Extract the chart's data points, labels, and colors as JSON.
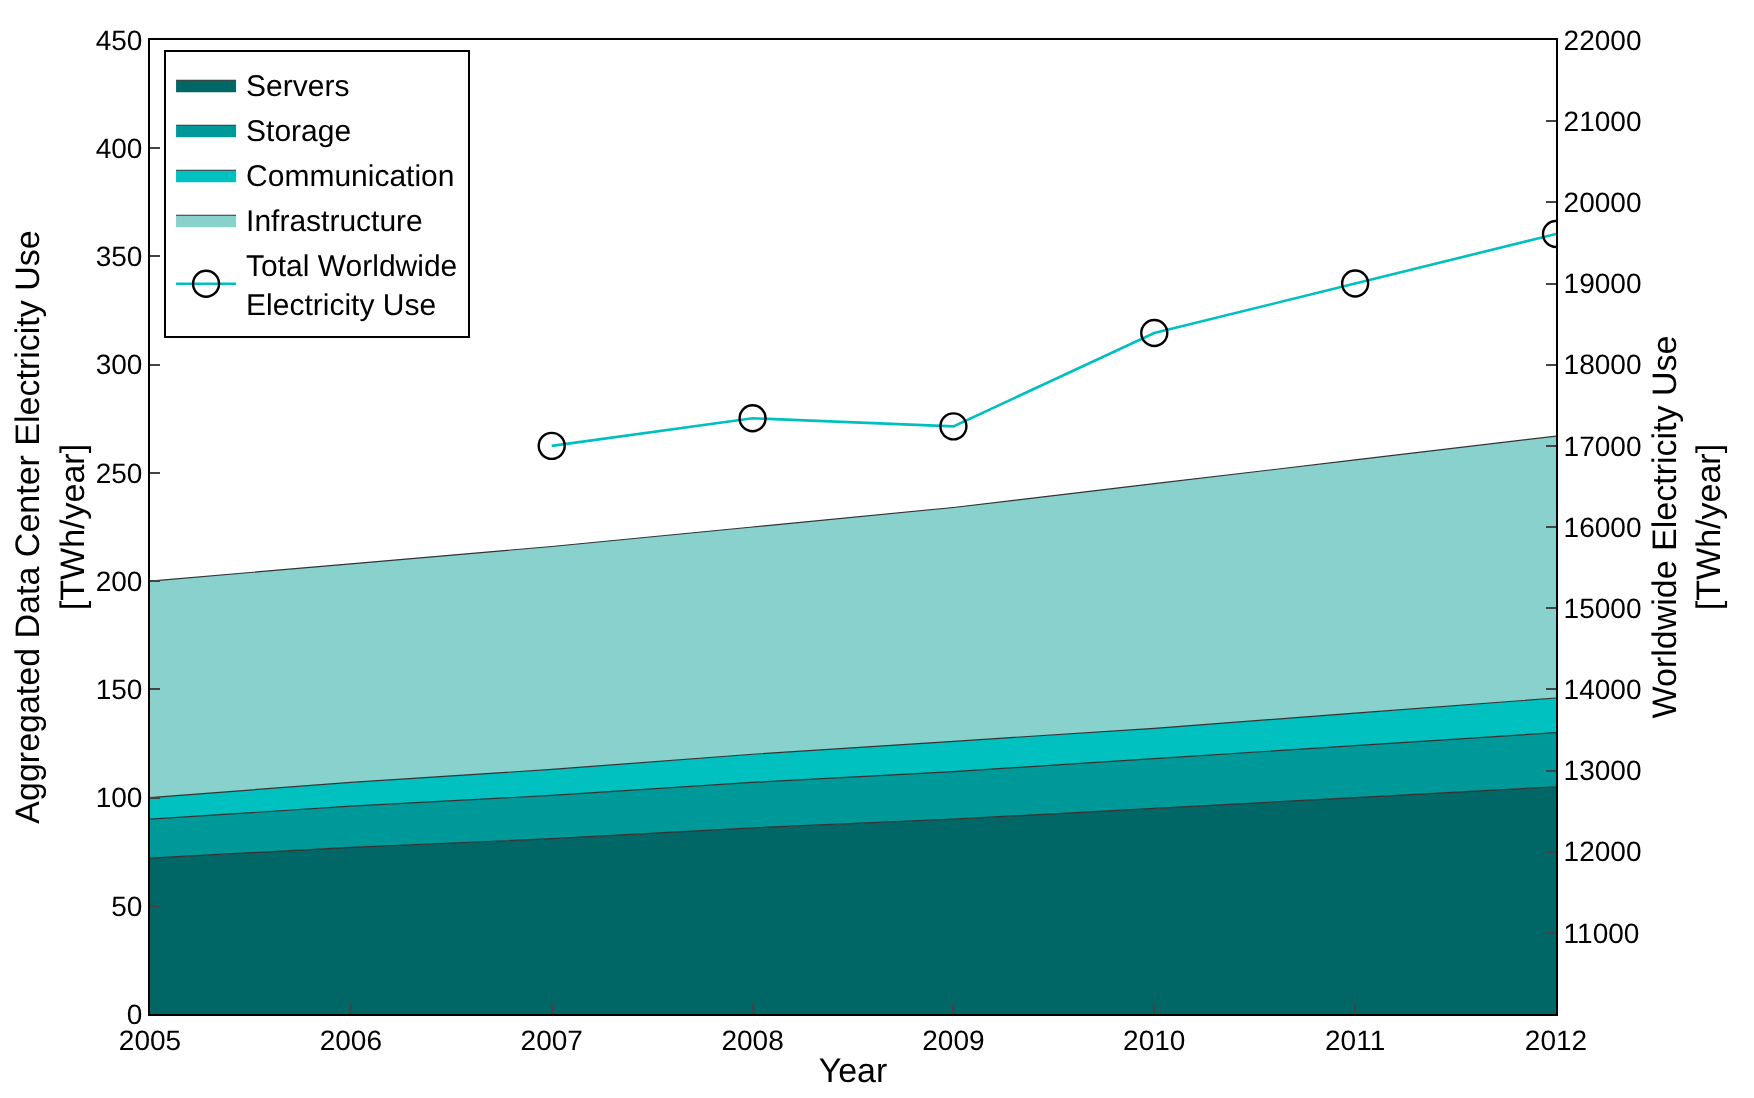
{
  "chart_data": {
    "type": "area",
    "stacked": true,
    "xlabel": "Year",
    "ylabel": "Aggregated Data Center Electricity Use\n[TWh/year]",
    "y2label": "Worldwide Electricity Use\n[TWh/year]",
    "x": [
      2005,
      2006,
      2007,
      2008,
      2009,
      2010,
      2011,
      2012
    ],
    "xlim": [
      2005,
      2012
    ],
    "xticks": [
      2005,
      2006,
      2007,
      2008,
      2009,
      2010,
      2011,
      2012
    ],
    "ylim": [
      0,
      450
    ],
    "yticks": [
      0,
      50,
      100,
      150,
      200,
      250,
      300,
      350,
      400,
      450
    ],
    "y2lim": [
      10000,
      22000
    ],
    "y2ticks": [
      11000,
      12000,
      13000,
      14000,
      15000,
      16000,
      17000,
      18000,
      19000,
      20000,
      21000,
      22000
    ],
    "grid": false,
    "legend": "top left",
    "series": [
      {
        "name": "Servers",
        "color": "#006666",
        "values": [
          72,
          77,
          81,
          86,
          90,
          95,
          100,
          105
        ]
      },
      {
        "name": "Storage",
        "color": "#009999",
        "values": [
          18,
          19,
          20,
          21,
          22,
          23,
          24,
          25
        ]
      },
      {
        "name": "Communication",
        "color": "#00c0c0",
        "values": [
          10,
          11,
          12,
          13,
          14,
          14,
          15,
          16
        ]
      },
      {
        "name": "Infrastructure",
        "color": "#88d1cd",
        "values": [
          100,
          101,
          103,
          105,
          108,
          113,
          117,
          121
        ]
      },
      {
        "name": "Total Worldwide\nElectricity Use",
        "type": "line",
        "axis": "y2",
        "marker": "circle",
        "color": "#00bfbf",
        "x": [
          2007,
          2008,
          2009,
          2010,
          2011,
          2012
        ],
        "values": [
          17000,
          17340,
          17240,
          18390,
          19000,
          19610
        ]
      }
    ]
  }
}
